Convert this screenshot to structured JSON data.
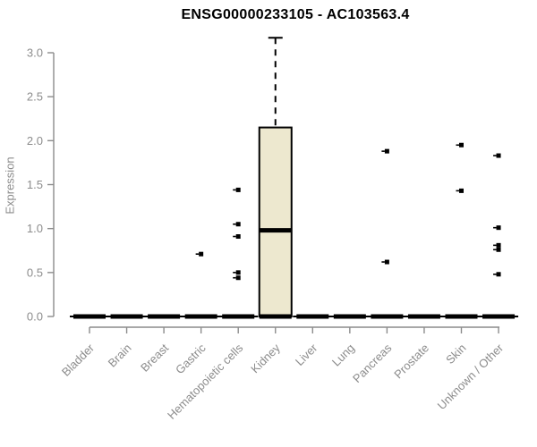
{
  "chart_data": {
    "type": "boxplot",
    "title": "ENSG00000233105 - AC103563.4",
    "xlabel": "",
    "ylabel": "Expression",
    "ylim": [
      0,
      3.2
    ],
    "yticks": [
      0.0,
      0.5,
      1.0,
      1.5,
      2.0,
      2.5,
      3.0
    ],
    "grid": false,
    "legend": null,
    "categories": [
      "Bladder",
      "Brain",
      "Breast",
      "Gastric",
      "Hematopoietic cells",
      "Kidney",
      "Liver",
      "Lung",
      "Pancreas",
      "Prostate",
      "Skin",
      "Unknown / Other"
    ],
    "boxes": [
      {
        "category": "Bladder",
        "whisker_low": 0.0,
        "q1": 0.0,
        "median": 0.0,
        "q3": 0.0,
        "whisker_high": 0.0,
        "outliers": []
      },
      {
        "category": "Brain",
        "whisker_low": 0.0,
        "q1": 0.0,
        "median": 0.0,
        "q3": 0.0,
        "whisker_high": 0.0,
        "outliers": []
      },
      {
        "category": "Breast",
        "whisker_low": 0.0,
        "q1": 0.0,
        "median": 0.0,
        "q3": 0.0,
        "whisker_high": 0.0,
        "outliers": []
      },
      {
        "category": "Gastric",
        "whisker_low": 0.0,
        "q1": 0.0,
        "median": 0.0,
        "q3": 0.0,
        "whisker_high": 0.0,
        "outliers": [
          0.71
        ]
      },
      {
        "category": "Hematopoietic cells",
        "whisker_low": 0.0,
        "q1": 0.0,
        "median": 0.0,
        "q3": 0.0,
        "whisker_high": 0.0,
        "outliers": [
          1.44,
          1.05,
          0.91,
          0.5,
          0.44
        ]
      },
      {
        "category": "Kidney",
        "whisker_low": 0.0,
        "q1": 0.0,
        "median": 0.98,
        "q3": 2.15,
        "whisker_high": 3.17,
        "outliers": []
      },
      {
        "category": "Liver",
        "whisker_low": 0.0,
        "q1": 0.0,
        "median": 0.0,
        "q3": 0.0,
        "whisker_high": 0.0,
        "outliers": []
      },
      {
        "category": "Lung",
        "whisker_low": 0.0,
        "q1": 0.0,
        "median": 0.0,
        "q3": 0.0,
        "whisker_high": 0.0,
        "outliers": []
      },
      {
        "category": "Pancreas",
        "whisker_low": 0.0,
        "q1": 0.0,
        "median": 0.0,
        "q3": 0.0,
        "whisker_high": 0.0,
        "outliers": [
          1.88,
          0.62
        ]
      },
      {
        "category": "Prostate",
        "whisker_low": 0.0,
        "q1": 0.0,
        "median": 0.0,
        "q3": 0.0,
        "whisker_high": 0.0,
        "outliers": []
      },
      {
        "category": "Skin",
        "whisker_low": 0.0,
        "q1": 0.0,
        "median": 0.0,
        "q3": 0.0,
        "whisker_high": 0.0,
        "outliers": [
          1.95,
          1.43
        ]
      },
      {
        "category": "Unknown / Other",
        "whisker_low": 0.0,
        "q1": 0.0,
        "median": 0.0,
        "q3": 0.0,
        "whisker_high": 0.0,
        "outliers": [
          1.83,
          1.01,
          0.81,
          0.76,
          0.48
        ]
      }
    ],
    "colors": {
      "box_fill": "#ede8cf",
      "box_border": "#000000",
      "median": "#000000",
      "whisker": "#000000",
      "outlier": "#000000",
      "axis": "#8c8c8c",
      "tick_label": "#8c8c8c",
      "title": "#000000"
    }
  }
}
